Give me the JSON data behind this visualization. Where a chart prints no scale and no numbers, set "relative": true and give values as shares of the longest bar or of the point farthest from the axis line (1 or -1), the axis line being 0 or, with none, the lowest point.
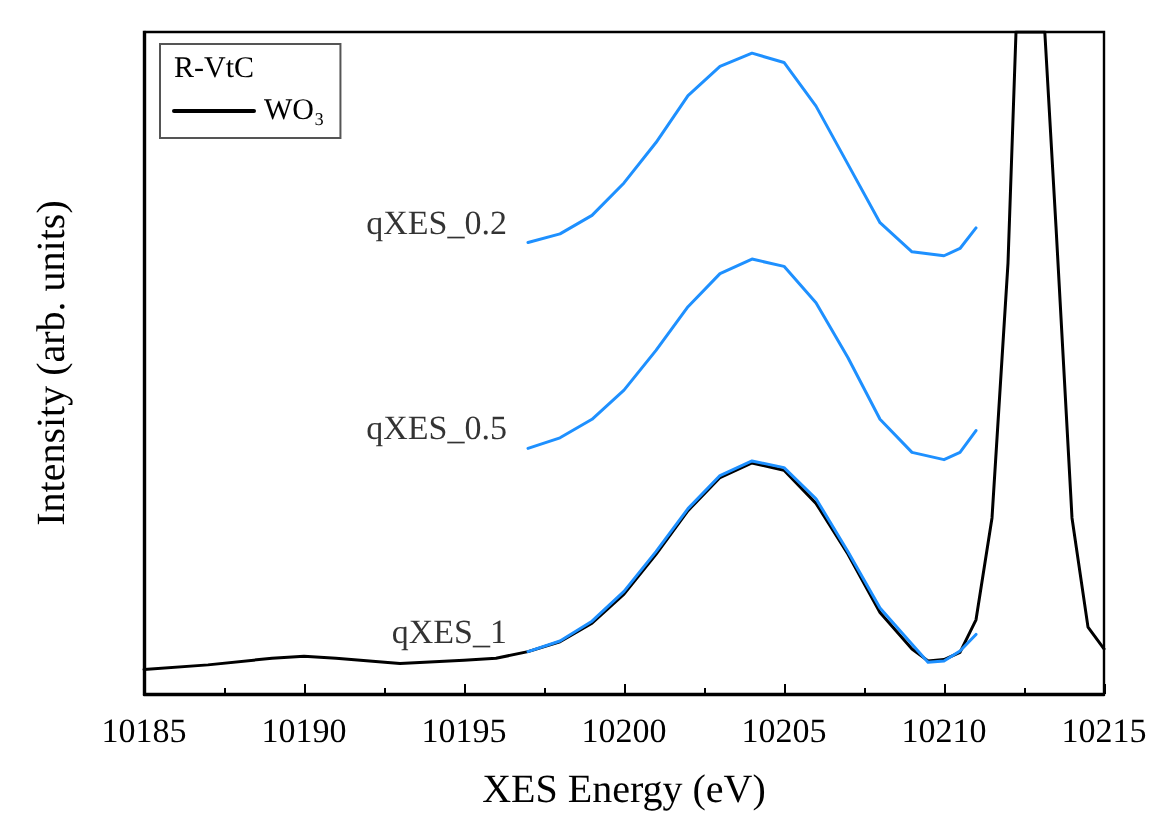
{
  "chart_data": {
    "type": "line",
    "xlabel": "XES Energy (eV)",
    "ylabel": "Intensity (arb. units)",
    "legend_title": "R-VtC",
    "legend": "top left",
    "relative": true,
    "grid": false,
    "marker": "none",
    "line_style": "solid",
    "xlim": [
      10185,
      10215
    ],
    "xticks": [
      10185,
      10190,
      10195,
      10200,
      10205,
      10210,
      10215
    ],
    "series": [
      {
        "name": "WO₃",
        "color": "#000000",
        "x": [
          10185,
          10187,
          10189,
          10190,
          10191,
          10193,
          10195,
          10196,
          10197,
          10198,
          10199,
          10200,
          10201,
          10202,
          10203,
          10204,
          10205,
          10206,
          10207,
          10208,
          10209,
          10209.5,
          10210,
          10210.5,
          10211,
          10211.5,
          10212,
          10212.25,
          10213.15,
          10213.5,
          10214,
          10214.5,
          10215
        ],
        "values": [
          0.037,
          0.044,
          0.054,
          0.057,
          0.054,
          0.046,
          0.051,
          0.054,
          0.064,
          0.079,
          0.107,
          0.151,
          0.211,
          0.277,
          0.327,
          0.349,
          0.338,
          0.288,
          0.211,
          0.123,
          0.068,
          0.05,
          0.052,
          0.063,
          0.112,
          0.266,
          0.651,
          1,
          1,
          0.706,
          0.266,
          0.101,
          0.068
        ]
      },
      {
        "color": "#1e90ff",
        "x": [
          10197,
          10198,
          10199,
          10200,
          10201,
          10202,
          10203,
          10204,
          10205,
          10206,
          10207,
          10208,
          10209,
          10210,
          10210.5,
          10211
        ],
        "values": [
          0.682,
          0.695,
          0.723,
          0.772,
          0.833,
          0.904,
          0.948,
          0.968,
          0.954,
          0.888,
          0.8,
          0.712,
          0.668,
          0.662,
          0.673,
          0.704
        ]
      },
      {
        "color": "#1e90ff",
        "x": [
          10197,
          10198,
          10199,
          10200,
          10201,
          10202,
          10203,
          10204,
          10205,
          10206,
          10207,
          10208,
          10209,
          10210,
          10210.5,
          10211
        ],
        "values": [
          0.371,
          0.387,
          0.415,
          0.459,
          0.519,
          0.585,
          0.635,
          0.657,
          0.646,
          0.591,
          0.508,
          0.415,
          0.365,
          0.354,
          0.365,
          0.398
        ]
      },
      {
        "color": "#1e90ff",
        "x": [
          10197,
          10198,
          10199,
          10200,
          10201,
          10202,
          10203,
          10204,
          10205,
          10206,
          10207,
          10208,
          10209,
          10209.5,
          10210,
          10210.5,
          10211
        ],
        "values": [
          0.064,
          0.08,
          0.11,
          0.155,
          0.215,
          0.28,
          0.33,
          0.352,
          0.342,
          0.295,
          0.215,
          0.13,
          0.075,
          0.048,
          0.05,
          0.065,
          0.09
        ]
      }
    ],
    "annotations": [
      "qXES_0.2",
      "qXES_0.5",
      "qXES_1"
    ]
  }
}
